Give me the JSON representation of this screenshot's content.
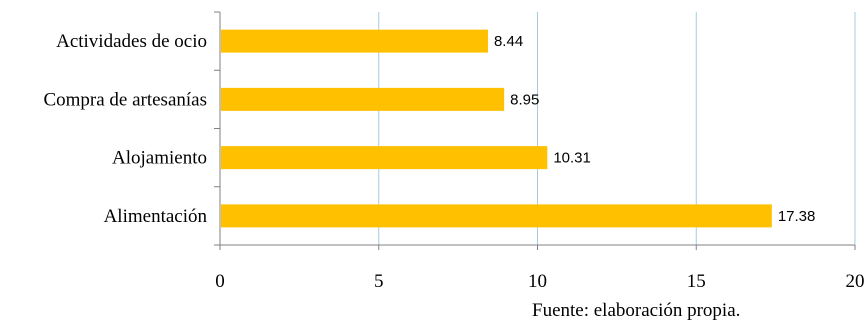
{
  "chart_data": {
    "type": "bar",
    "orientation": "horizontal",
    "categories": [
      "Actividades de ocio",
      "Compra de artesanías",
      "Alojamiento",
      "Alimentación"
    ],
    "values": [
      8.44,
      8.95,
      10.31,
      17.38
    ],
    "data_labels": [
      "8.44",
      "8.95",
      "10.31",
      "17.38"
    ],
    "xlim": [
      0,
      20
    ],
    "x_ticks": [
      0,
      5,
      10,
      15,
      20
    ],
    "x_tick_labels": [
      "0",
      "5",
      "10",
      "15",
      "20"
    ],
    "grid": "vertical",
    "legend": "none",
    "colors": {
      "bar": "#FFC000",
      "grid": "#A6CBE0",
      "axis": "#808080"
    }
  },
  "source_note": "Fuente: elaboración propia."
}
